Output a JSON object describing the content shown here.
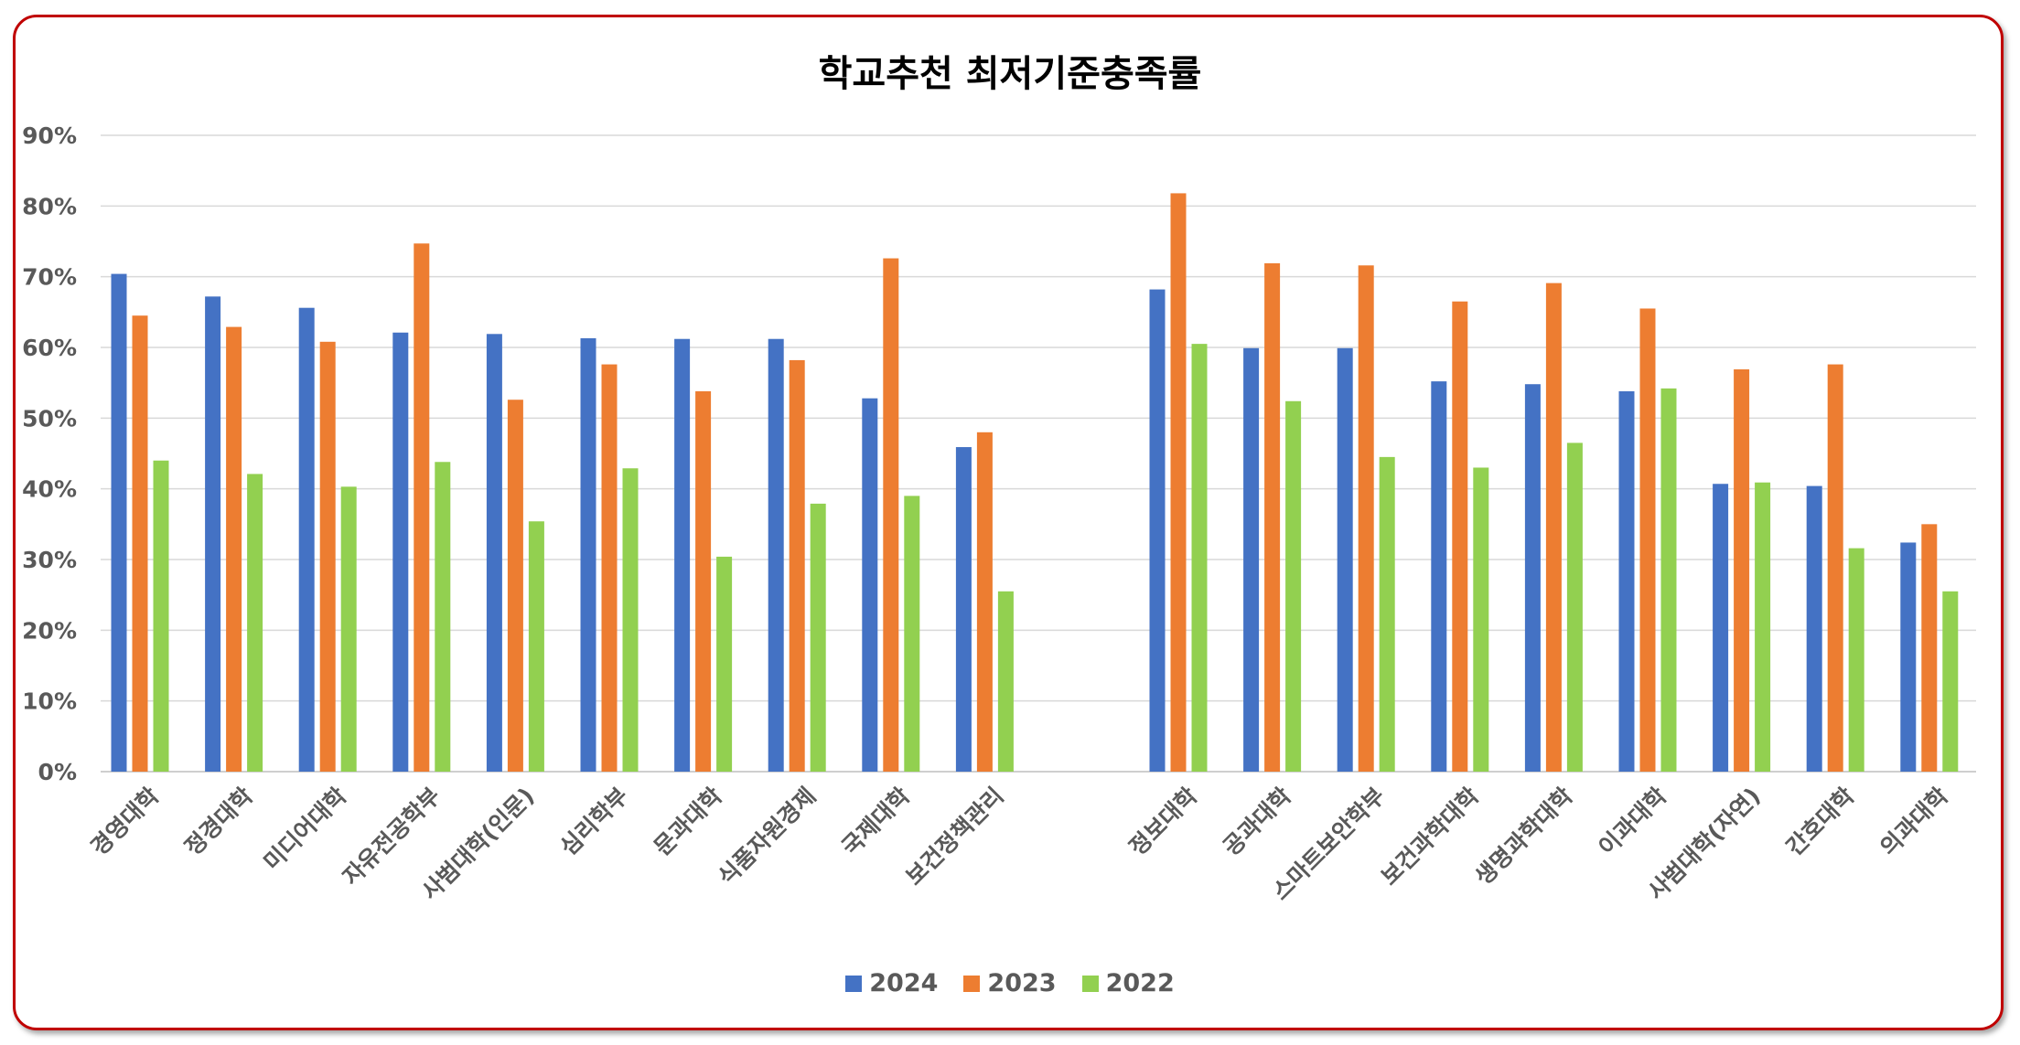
{
  "chart_data": {
    "type": "bar",
    "title": "학교추천 최저기준충족률",
    "xlabel": "",
    "ylabel": "",
    "ylim": [
      0,
      0.9
    ],
    "yticks": [
      "0%",
      "10%",
      "20%",
      "30%",
      "40%",
      "50%",
      "60%",
      "70%",
      "80%",
      "90%"
    ],
    "grid": true,
    "legend_position": "bottom-center",
    "categories": [
      "경영대학",
      "정경대학",
      "미디어대학",
      "자유전공학부",
      "사범대학(인문)",
      "심리학부",
      "문과대학",
      "식품자원경제",
      "국제대학",
      "보건정책관리",
      "정보대학",
      "공과대학",
      "스마트보안학부",
      "보건과학대학",
      "생명과학대학",
      "이과대학",
      "사범대학(자연)",
      "간호대학",
      "의과대학"
    ],
    "series": [
      {
        "name": "2024",
        "color": "#4472c4",
        "values": [
          0.704,
          0.672,
          0.656,
          0.621,
          0.619,
          0.613,
          0.612,
          0.612,
          0.528,
          0.459,
          0.682,
          0.599,
          0.599,
          0.552,
          0.548,
          0.538,
          0.407,
          0.404,
          0.324
        ]
      },
      {
        "name": "2023",
        "color": "#ed7d31",
        "values": [
          0.645,
          0.629,
          0.608,
          0.747,
          0.526,
          0.576,
          0.538,
          0.582,
          0.726,
          0.48,
          0.818,
          0.719,
          0.716,
          0.665,
          0.691,
          0.655,
          0.569,
          0.576,
          0.35
        ]
      },
      {
        "name": "2022",
        "color": "#92d050",
        "values": [
          0.44,
          0.421,
          0.403,
          0.438,
          0.354,
          0.429,
          0.304,
          0.379,
          0.39,
          0.255,
          0.605,
          0.524,
          0.445,
          0.43,
          0.465,
          0.542,
          0.409,
          0.316,
          0.255
        ]
      }
    ]
  }
}
